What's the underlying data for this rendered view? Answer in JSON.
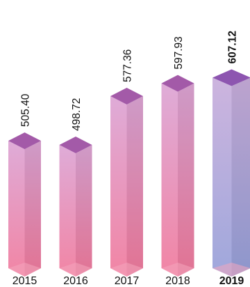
{
  "chart_data": {
    "type": "bar",
    "style": "3d-prism",
    "categories": [
      "2015",
      "2016",
      "2017",
      "2018",
      "2019"
    ],
    "values": [
      505.4,
      498.72,
      577.36,
      597.93,
      607.12
    ],
    "value_labels": [
      "505.40",
      "498.72",
      "577.36",
      "597.93",
      "607.12"
    ],
    "highlight_index": 4,
    "ylim": [
      300,
      620
    ],
    "grid": false,
    "legend": "none",
    "colors": {
      "normal_top": "#d99dd1",
      "normal_bottom": "#ef6f94",
      "normal_cap": "#a35aa8",
      "highlight_top": "#c4a7d8",
      "highlight_bottom": "#8e98d6",
      "highlight_cap": "#8d55b0",
      "base": "#f4a5be"
    }
  }
}
